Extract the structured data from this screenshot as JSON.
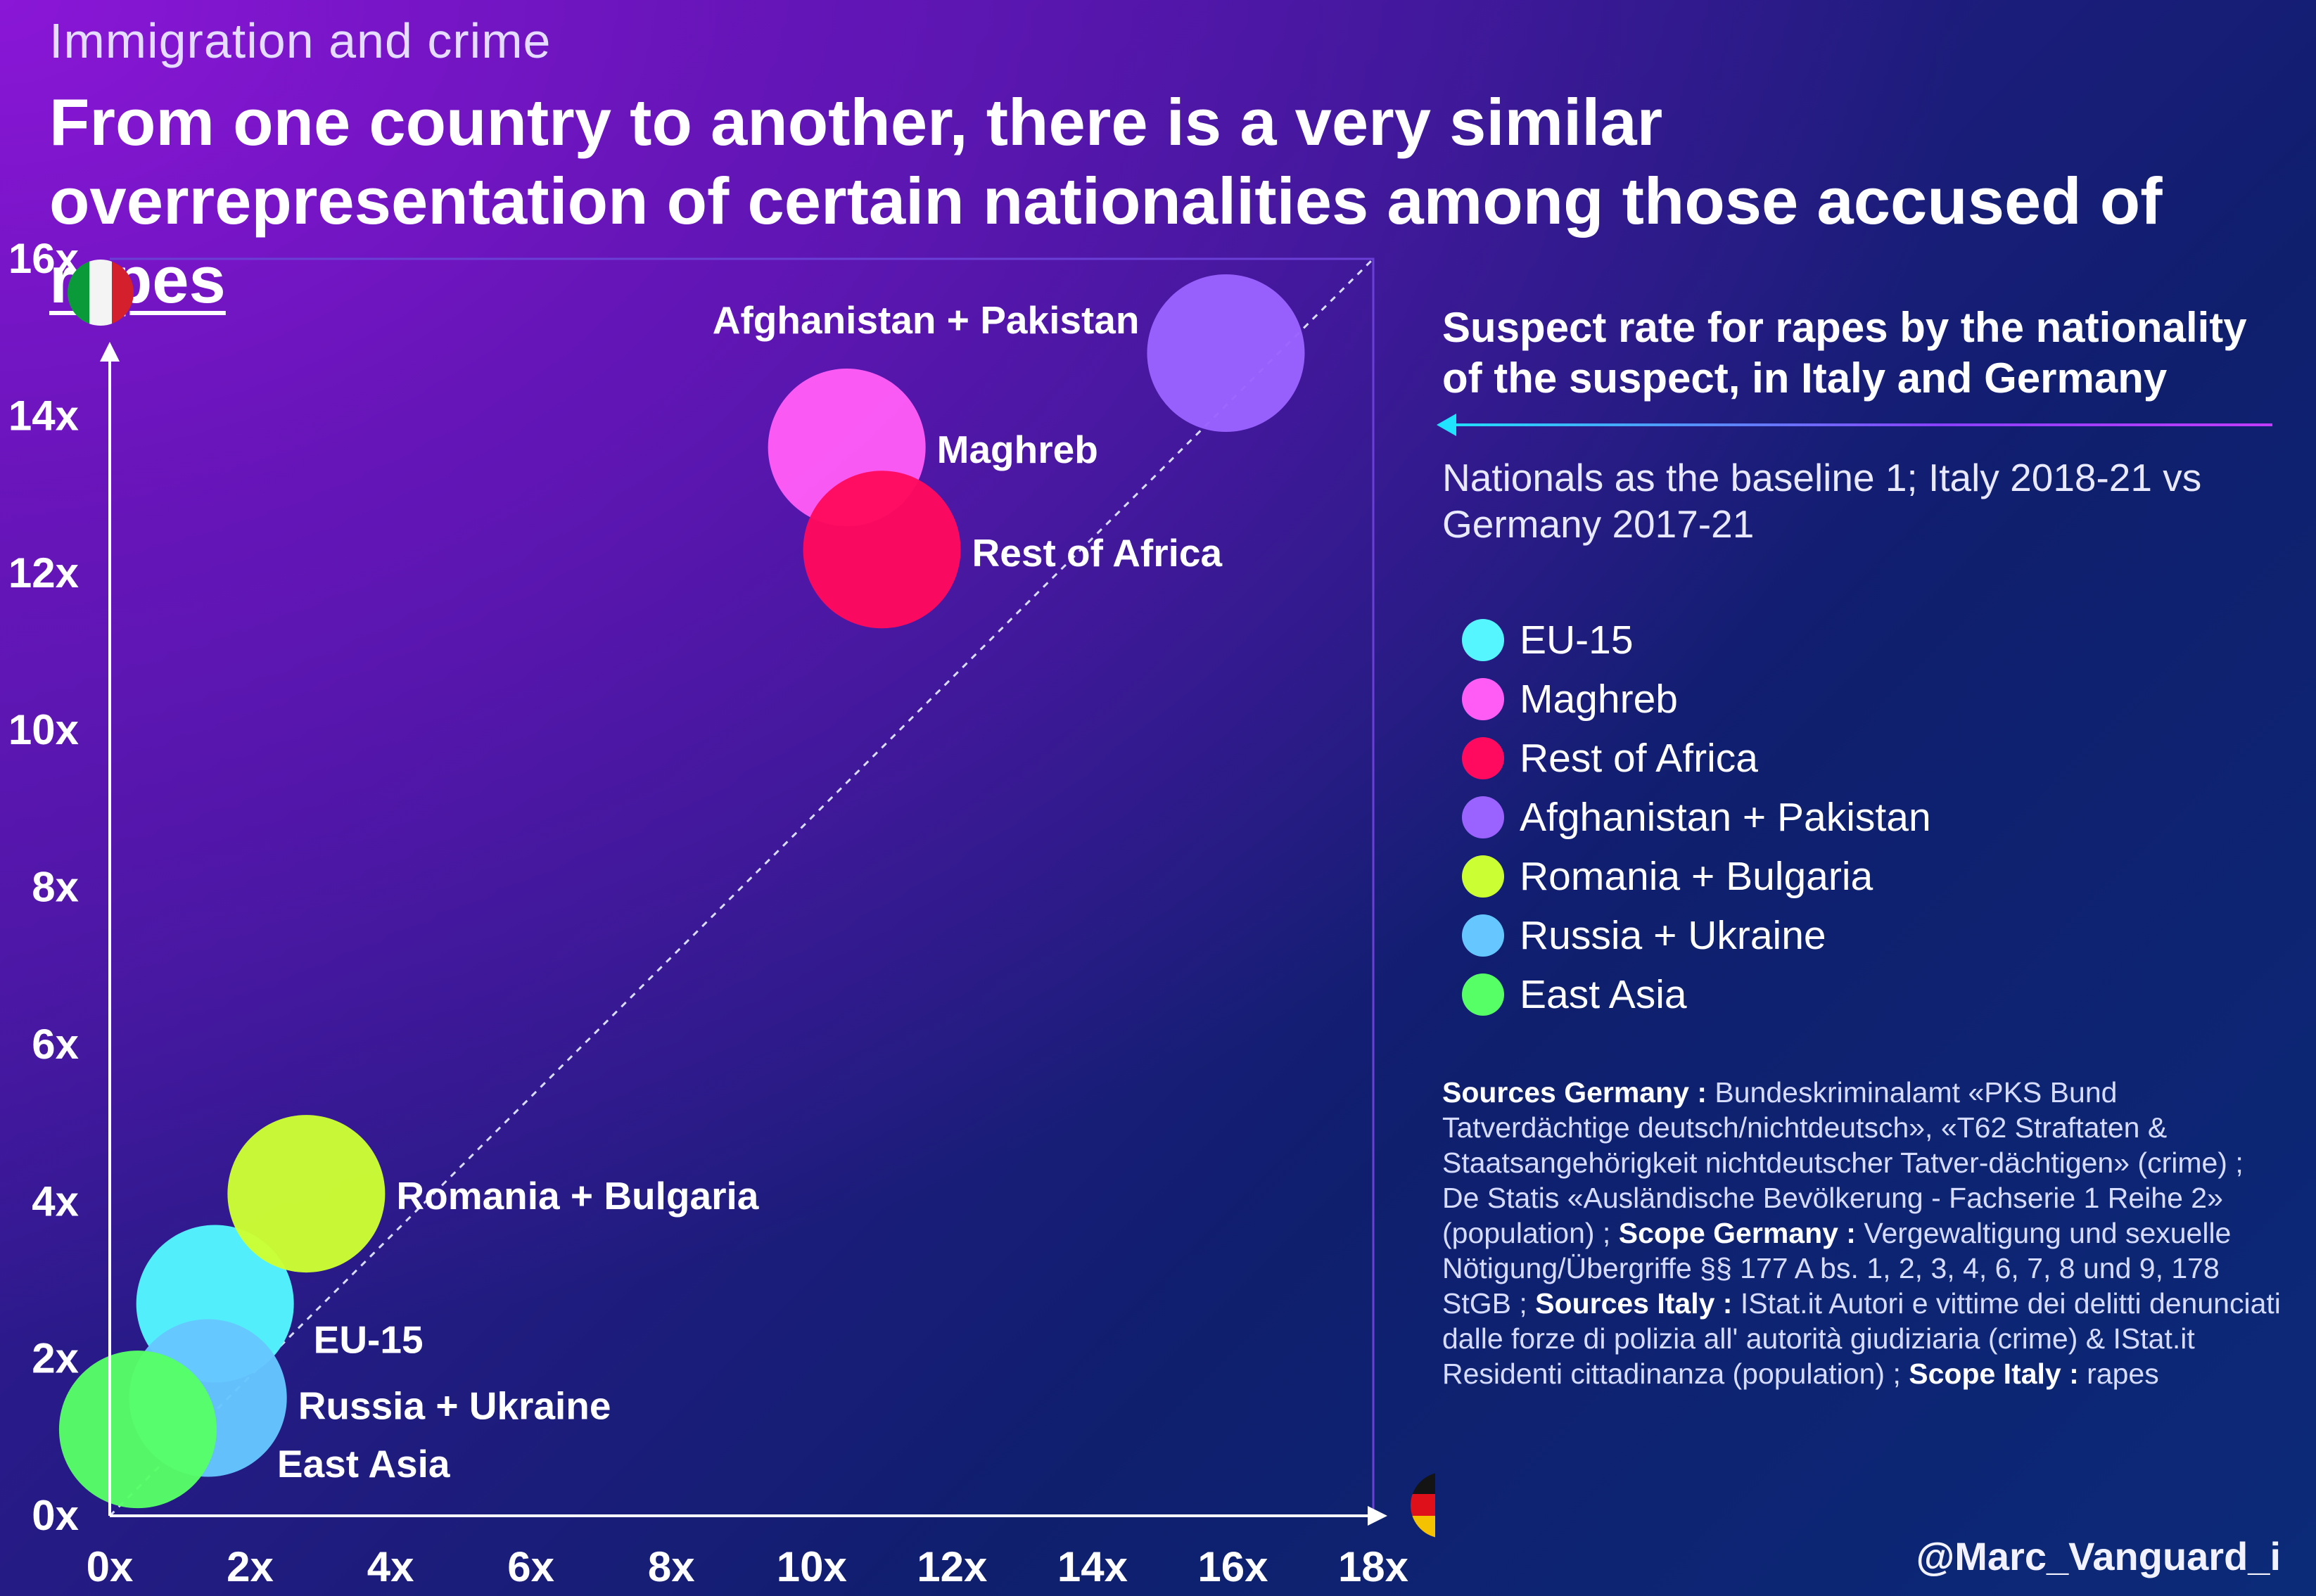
{
  "header": {
    "supertitle": "Immigration and crime",
    "headline_main": "From one country to another, there is a very similar overrepresentation of certain nationalities among those accused of",
    "headline_emphasis": "rapes"
  },
  "panel": {
    "title": "Suspect rate for rapes by the nationality of the suspect, in Italy and Germany",
    "subtitle": "Nationals as the baseline 1; Italy 2018-21 vs Germany 2017-21"
  },
  "sources": {
    "germany_label": "Sources Germany :",
    "germany_text": "Bundeskriminalamt «PKS Bund Tatverdächtige deutsch/nichtdeutsch», «T62 Straftaten & Staatsangehörigkeit nichtdeutscher Tatver-dächtigen» (crime) ; De Statis «Ausländische Bevölkerung - Fachserie 1 Reihe 2» (population) ;",
    "scope_germany_label": "Scope Germany :",
    "scope_germany_text": "Vergewaltigung und sexuelle Nötigung/Übergriffe §§ 177 A bs. 1, 2, 3, 4, 6, 7, 8 und 9, 178 StGB ;",
    "italy_label": "Sources Italy :",
    "italy_text": "IStat.it Autori e vittime dei delitti denunciati dalle forze di polizia all' autorità giudiziaria (crime) & IStat.it Residenti cittadinanza (population) ;",
    "scope_italy_label": "Scope Italy :",
    "scope_italy_text": "rapes"
  },
  "handle": "@Marc_Vanguard_i",
  "chart_data": {
    "type": "scatter",
    "x_axis_flag": "Germany",
    "y_axis_flag": "Italy",
    "xlim": [
      0,
      18
    ],
    "ylim": [
      0,
      16
    ],
    "x_ticks": [
      "0x",
      "2x",
      "4x",
      "6x",
      "8x",
      "10x",
      "12x",
      "14x",
      "16x",
      "18x"
    ],
    "y_ticks": [
      "0x",
      "2x",
      "4x",
      "6x",
      "8x",
      "10x",
      "12x",
      "14x",
      "16x"
    ],
    "diagonal_reference": true,
    "legend_position": "right",
    "series": [
      {
        "name": "EU-15",
        "x": 1.5,
        "y": 2.7,
        "color": "#55f6ff"
      },
      {
        "name": "Maghreb",
        "x": 10.5,
        "y": 13.6,
        "color": "#ff5cf6"
      },
      {
        "name": "Rest of Africa",
        "x": 11.0,
        "y": 12.3,
        "color": "#ff0a5e"
      },
      {
        "name": "Afghanistan + Pakistan",
        "x": 15.9,
        "y": 14.8,
        "color": "#9a62ff"
      },
      {
        "name": "Romania + Bulgaria",
        "x": 2.8,
        "y": 4.1,
        "color": "#ccff33"
      },
      {
        "name": "Russia + Ukraine",
        "x": 1.4,
        "y": 1.5,
        "color": "#66c6ff"
      },
      {
        "name": "East Asia",
        "x": 0.4,
        "y": 1.1,
        "color": "#57ff67"
      }
    ]
  }
}
